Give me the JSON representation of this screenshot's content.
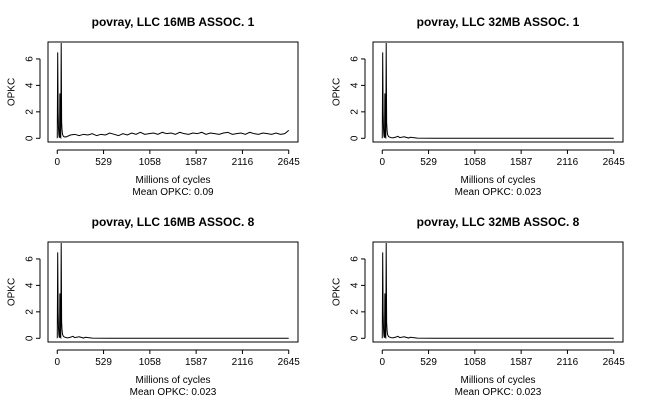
{
  "chart_data": [
    {
      "type": "line",
      "title": "povray, LLC 16MB ASSOC. 1",
      "xlabel": "Millions of cycles",
      "ylabel": "OPKC",
      "note": "Mean OPKC: 0.09",
      "xlim": [
        0,
        2645
      ],
      "ylim": [
        0,
        7
      ],
      "xticks": [
        0,
        529,
        1058,
        1587,
        2116,
        2645
      ],
      "yticks": [
        0,
        2,
        4,
        6
      ],
      "grid": false,
      "series": [
        {
          "x": [
            0,
            5,
            10,
            14,
            18,
            22,
            26,
            30,
            35,
            40,
            45,
            50,
            55,
            60,
            70,
            80,
            90,
            100,
            150,
            200,
            250,
            300,
            350,
            400,
            450,
            500,
            550,
            600,
            650,
            700,
            750,
            800,
            850,
            900,
            950,
            1000,
            1050,
            1100,
            1150,
            1200,
            1250,
            1300,
            1350,
            1400,
            1450,
            1500,
            1550,
            1600,
            1650,
            1700,
            1750,
            1800,
            1850,
            1900,
            1950,
            2000,
            2050,
            2100,
            2150,
            2200,
            2250,
            2300,
            2350,
            2400,
            2450,
            2500,
            2550,
            2600,
            2645
          ],
          "y": [
            0,
            6.5,
            2.0,
            0.8,
            0.3,
            0.1,
            0.05,
            3.4,
            0.1,
            0.05,
            7.2,
            1.2,
            0.6,
            0.3,
            0.15,
            0.1,
            0.12,
            0.1,
            0.25,
            0.3,
            0.2,
            0.3,
            0.25,
            0.35,
            0.2,
            0.3,
            0.25,
            0.4,
            0.3,
            0.2,
            0.35,
            0.25,
            0.4,
            0.3,
            0.45,
            0.3,
            0.35,
            0.4,
            0.3,
            0.45,
            0.35,
            0.4,
            0.3,
            0.45,
            0.35,
            0.3,
            0.4,
            0.35,
            0.45,
            0.3,
            0.4,
            0.35,
            0.3,
            0.4,
            0.45,
            0.3,
            0.35,
            0.4,
            0.3,
            0.45,
            0.35,
            0.3,
            0.4,
            0.35,
            0.3,
            0.4,
            0.3,
            0.35,
            0.6
          ]
        }
      ]
    },
    {
      "type": "line",
      "title": "povray, LLC 32MB ASSOC. 1",
      "xlabel": "Millions of cycles",
      "ylabel": "OPKC",
      "note": "Mean OPKC: 0.023",
      "xlim": [
        0,
        2645
      ],
      "ylim": [
        0,
        7
      ],
      "xticks": [
        0,
        529,
        1058,
        1587,
        2116,
        2645
      ],
      "yticks": [
        0,
        2,
        4,
        6
      ],
      "grid": false,
      "series": [
        {
          "x": [
            0,
            5,
            10,
            14,
            18,
            22,
            26,
            30,
            35,
            40,
            45,
            50,
            55,
            60,
            70,
            80,
            100,
            120,
            150,
            180,
            200,
            250,
            300,
            320,
            400,
            600,
            1000,
            1500,
            2000,
            2645
          ],
          "y": [
            0,
            6.5,
            2.0,
            0.8,
            0.3,
            0.1,
            0.05,
            3.4,
            0.1,
            0.05,
            7.2,
            1.2,
            0.6,
            0.3,
            0.15,
            0.1,
            0.05,
            0.03,
            0.08,
            0.15,
            0.05,
            0.12,
            0.02,
            0.08,
            0.01,
            0.0,
            0.0,
            0.0,
            0.0,
            0.0
          ]
        }
      ]
    },
    {
      "type": "line",
      "title": "povray, LLC 16MB ASSOC. 8",
      "xlabel": "Millions of cycles",
      "ylabel": "OPKC",
      "note": "Mean OPKC: 0.023",
      "xlim": [
        0,
        2645
      ],
      "ylim": [
        0,
        7
      ],
      "xticks": [
        0,
        529,
        1058,
        1587,
        2116,
        2645
      ],
      "yticks": [
        0,
        2,
        4,
        6
      ],
      "grid": false,
      "series": [
        {
          "x": [
            0,
            5,
            10,
            14,
            18,
            22,
            26,
            30,
            35,
            40,
            45,
            50,
            55,
            60,
            70,
            80,
            100,
            120,
            150,
            180,
            200,
            250,
            300,
            320,
            400,
            600,
            1000,
            1500,
            2000,
            2645
          ],
          "y": [
            0,
            6.5,
            2.0,
            0.8,
            0.3,
            0.1,
            0.05,
            3.4,
            0.1,
            0.05,
            7.2,
            1.2,
            0.6,
            0.3,
            0.15,
            0.1,
            0.05,
            0.03,
            0.08,
            0.15,
            0.05,
            0.12,
            0.02,
            0.08,
            0.01,
            0.0,
            0.0,
            0.0,
            0.0,
            0.0
          ]
        }
      ]
    },
    {
      "type": "line",
      "title": "povray, LLC 32MB ASSOC. 8",
      "xlabel": "Millions of cycles",
      "ylabel": "OPKC",
      "note": "Mean OPKC: 0.023",
      "xlim": [
        0,
        2645
      ],
      "ylim": [
        0,
        7
      ],
      "xticks": [
        0,
        529,
        1058,
        1587,
        2116,
        2645
      ],
      "yticks": [
        0,
        2,
        4,
        6
      ],
      "grid": false,
      "series": [
        {
          "x": [
            0,
            5,
            10,
            14,
            18,
            22,
            26,
            30,
            35,
            40,
            45,
            50,
            55,
            60,
            70,
            80,
            100,
            120,
            150,
            180,
            200,
            250,
            300,
            320,
            400,
            600,
            1000,
            1500,
            2000,
            2645
          ],
          "y": [
            0,
            6.5,
            2.0,
            0.8,
            0.3,
            0.1,
            0.05,
            3.4,
            0.1,
            0.05,
            7.2,
            1.2,
            0.6,
            0.3,
            0.15,
            0.1,
            0.05,
            0.03,
            0.08,
            0.15,
            0.05,
            0.12,
            0.02,
            0.08,
            0.01,
            0.0,
            0.0,
            0.0,
            0.0,
            0.0
          ]
        }
      ]
    }
  ]
}
